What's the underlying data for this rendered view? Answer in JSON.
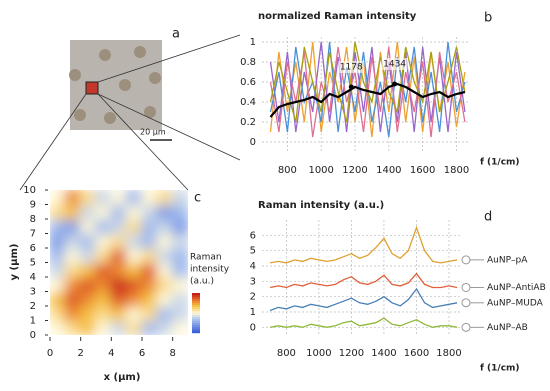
{
  "panel_a": {
    "label": "a",
    "scale_bar": "20 μm"
  },
  "chart_data": [
    {
      "type": "line",
      "label": "b",
      "title": "normalized Raman intensity",
      "x_label": "f (1/cm)",
      "x": [
        700,
        750,
        800,
        850,
        900,
        950,
        1000,
        1050,
        1100,
        1150,
        1200,
        1250,
        1300,
        1350,
        1400,
        1450,
        1500,
        1550,
        1600,
        1650,
        1700,
        1750,
        1800,
        1850
      ],
      "xlim": [
        650,
        1880
      ],
      "xticks": [
        800,
        1000,
        1200,
        1400,
        1600,
        1800
      ],
      "ylim": [
        -0.1,
        1.05
      ],
      "yticks": [
        0,
        0.2,
        0.4,
        0.6,
        0.8,
        1
      ],
      "grid": true,
      "series": [
        {
          "color": "#f0a030",
          "values": [
            0.1,
            0.9,
            0.3,
            0.8,
            0.2,
            1.0,
            0.1,
            0.7,
            0.4,
            0.95,
            0.2,
            0.8,
            0.05,
            0.9,
            0.3,
            1.0,
            0.2,
            0.85,
            0.1,
            0.9,
            0.3,
            0.8,
            0.15,
            0.7
          ]
        },
        {
          "color": "#9966cc",
          "values": [
            0.8,
            0.2,
            0.9,
            0.1,
            0.7,
            0.3,
            1.0,
            0.2,
            0.85,
            0.1,
            0.9,
            0.3,
            0.95,
            0.1,
            0.8,
            0.2,
            0.9,
            0.1,
            0.95,
            0.2,
            0.85,
            0.1,
            0.9,
            0.3
          ]
        },
        {
          "color": "#4a90d9",
          "values": [
            0.3,
            0.7,
            0.1,
            0.95,
            0.4,
            0.6,
            0.2,
            1.0,
            0.1,
            0.75,
            0.3,
            0.9,
            0.2,
            0.6,
            0.05,
            0.85,
            0.4,
            0.95,
            0.2,
            0.7,
            0.1,
            1.0,
            0.3,
            0.6
          ]
        },
        {
          "color": "#e07090",
          "values": [
            0.6,
            0.1,
            0.8,
            0.4,
            0.9,
            0.05,
            0.6,
            0.3,
            0.95,
            0.4,
            0.7,
            0.1,
            0.85,
            0.3,
            0.95,
            0.1,
            0.7,
            0.3,
            0.8,
            0.05,
            0.9,
            0.4,
            0.7,
            0.2
          ]
        },
        {
          "color": "#a8a010",
          "values": [
            0.4,
            0.8,
            0.5,
            0.2,
            0.95,
            0.6,
            0.3,
            0.9,
            0.5,
            0.2,
            1.0,
            0.6,
            0.4,
            0.85,
            0.5,
            0.3,
            0.95,
            0.6,
            0.4,
            0.9,
            0.3,
            0.6,
            0.95,
            0.5
          ]
        },
        {
          "color": "#000000",
          "values": [
            0.25,
            0.35,
            0.38,
            0.4,
            0.42,
            0.45,
            0.4,
            0.48,
            0.45,
            0.5,
            0.55,
            0.52,
            0.5,
            0.48,
            0.55,
            0.58,
            0.55,
            0.5,
            0.45,
            0.48,
            0.5,
            0.45,
            0.48,
            0.5
          ]
        }
      ],
      "annotations": [
        {
          "x": 1178,
          "y": 0.55
        },
        {
          "x": 1434,
          "y": 0.58
        }
      ]
    },
    {
      "type": "heatmap",
      "label": "c",
      "x_label": "x (μm)",
      "y_label": "y (μm)",
      "xlim": [
        0,
        9
      ],
      "xticks": [
        0,
        2,
        4,
        6,
        8
      ],
      "ylim": [
        0,
        10
      ],
      "yticks": [
        0,
        1,
        2,
        3,
        4,
        5,
        6,
        7,
        8,
        9,
        10
      ],
      "colorbar_label": [
        "Raman",
        "intensity",
        "(a.u.)"
      ],
      "zlim": [
        0,
        1
      ],
      "z": [
        [
          0.5,
          0.6,
          0.7,
          0.5,
          0.4,
          0.6,
          0.3,
          0.4,
          0.5
        ],
        [
          0.6,
          0.8,
          0.7,
          0.6,
          0.7,
          0.5,
          0.6,
          0.3,
          0.4
        ],
        [
          0.7,
          0.9,
          0.8,
          0.7,
          0.9,
          0.8,
          0.7,
          0.5,
          0.4
        ],
        [
          0.5,
          0.8,
          0.9,
          0.8,
          1.0,
          0.9,
          0.8,
          0.6,
          0.5
        ],
        [
          0.4,
          0.6,
          0.7,
          0.9,
          0.8,
          0.7,
          0.9,
          0.5,
          0.3
        ],
        [
          0.3,
          0.5,
          0.4,
          0.6,
          0.9,
          0.5,
          0.6,
          0.4,
          0.3
        ],
        [
          0.2,
          0.4,
          0.3,
          0.5,
          0.6,
          0.4,
          0.3,
          0.5,
          0.4
        ],
        [
          0.3,
          0.2,
          0.5,
          0.3,
          0.4,
          0.6,
          0.3,
          0.4,
          0.2
        ],
        [
          0.6,
          0.7,
          0.4,
          0.5,
          0.3,
          0.5,
          0.4,
          0.2,
          0.3
        ],
        [
          0.5,
          0.8,
          0.6,
          0.4,
          0.5,
          0.3,
          0.5,
          0.6,
          0.4
        ]
      ]
    },
    {
      "type": "line",
      "label": "d",
      "title": "Raman intensity (a.u.)",
      "x_label": "f (1/cm)",
      "x": [
        700,
        750,
        800,
        850,
        900,
        950,
        1000,
        1050,
        1100,
        1150,
        1200,
        1250,
        1300,
        1350,
        1400,
        1450,
        1500,
        1550,
        1600,
        1650,
        1700,
        1750,
        1800,
        1850
      ],
      "xlim": [
        650,
        1880
      ],
      "xticks": [
        800,
        1000,
        1200,
        1400,
        1600,
        1800
      ],
      "ylim": [
        -0.5,
        7
      ],
      "yticks": [
        0,
        1,
        2,
        3,
        4,
        5,
        6
      ],
      "grid": true,
      "end_labels": true,
      "series": [
        {
          "name": "AuNP–pA",
          "color": "#e0a030",
          "values": [
            4.2,
            4.3,
            4.2,
            4.4,
            4.3,
            4.5,
            4.4,
            4.3,
            4.4,
            4.6,
            4.8,
            4.5,
            4.7,
            5.2,
            5.8,
            4.8,
            4.5,
            5.0,
            6.5,
            5.0,
            4.3,
            4.2,
            4.3,
            4.4
          ]
        },
        {
          "name": "AuNP–AntiAB",
          "color": "#e0603a",
          "values": [
            2.6,
            2.7,
            2.6,
            2.8,
            2.7,
            2.9,
            2.8,
            2.7,
            2.8,
            3.1,
            3.3,
            2.9,
            2.8,
            3.0,
            3.4,
            2.8,
            2.7,
            2.9,
            3.5,
            2.8,
            2.6,
            2.6,
            2.7,
            2.6
          ]
        },
        {
          "name": "AuNP–MUDA",
          "color": "#4a7fb5",
          "values": [
            1.1,
            1.3,
            1.2,
            1.4,
            1.3,
            1.5,
            1.4,
            1.3,
            1.5,
            1.7,
            1.9,
            1.6,
            1.5,
            1.7,
            2.0,
            1.6,
            1.4,
            1.8,
            2.5,
            1.6,
            1.3,
            1.4,
            1.5,
            1.6
          ]
        },
        {
          "name": "AuNP–AB",
          "color": "#8fb83a",
          "values": [
            0.0,
            0.1,
            0.0,
            0.1,
            0.0,
            0.2,
            0.1,
            0.0,
            0.1,
            0.3,
            0.4,
            0.1,
            0.2,
            0.3,
            0.6,
            0.2,
            0.1,
            0.3,
            0.5,
            0.2,
            0.0,
            0.1,
            0.1,
            0.0
          ]
        }
      ]
    }
  ]
}
